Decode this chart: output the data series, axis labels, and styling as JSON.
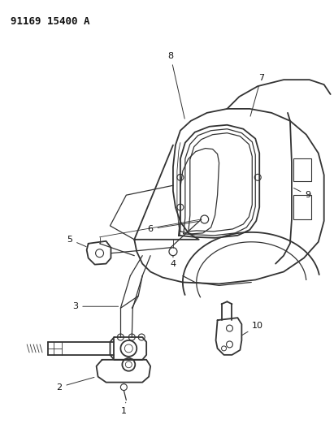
{
  "title": "91169 15400 A",
  "background_color": "#ffffff",
  "line_color": "#333333",
  "label_color": "#111111",
  "figsize": [
    4.11,
    5.33
  ],
  "dpi": 100
}
